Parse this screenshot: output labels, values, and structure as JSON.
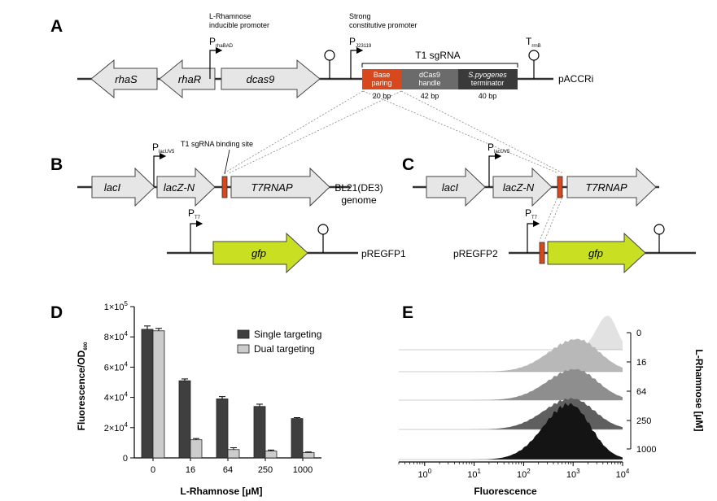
{
  "panels": {
    "a": "A",
    "b": "B",
    "c": "C",
    "d": "D",
    "e": "E"
  },
  "panel_a": {
    "promoter1": {
      "line1": "L-Rhamnose",
      "line2": "inducible promoter",
      "name": "P",
      "sub": "rhaBAD"
    },
    "promoter2": {
      "line1": "Strong",
      "line2": "constitutive promoter",
      "name": "P",
      "sub": "J23119"
    },
    "terminator": {
      "name": "T",
      "sub": "rrnB"
    },
    "genes": [
      "rhaS",
      "rhaR",
      "dcas9"
    ],
    "sgrna_title": "T1 sgRNA",
    "segments": [
      {
        "line1": "Base",
        "line2": "paring",
        "bp": "20 bp",
        "color": "#d9481c"
      },
      {
        "line1": "dCas9",
        "line2": "handle",
        "bp": "42 bp",
        "color": "#6b6b6b"
      },
      {
        "line1": "S.pyogenes",
        "line2": "terminator",
        "bp": "40 bp",
        "color": "#3a3a3a"
      }
    ],
    "plasmid": "pACCRi"
  },
  "panel_b": {
    "promoter": {
      "name": "P",
      "sub": "lacUV5"
    },
    "binding_site": "T1 sgRNA binding site",
    "genes": [
      "lacI",
      "lacZ-N",
      "T7RNAP"
    ],
    "genome_line1": "BL21(DE3)",
    "genome_line2": "genome",
    "promoter_t7": {
      "name": "P",
      "sub": "T7"
    },
    "gfp": "gfp",
    "plasmid": "pREGFP1"
  },
  "panel_c": {
    "promoter": {
      "name": "P",
      "sub": "lacUV5"
    },
    "genes": [
      "lacI",
      "lacZ-N",
      "T7RNAP"
    ],
    "promoter_t7": {
      "name": "P",
      "sub": "T7"
    },
    "gfp": "gfp",
    "plasmid": "pREGFP2"
  },
  "colors": {
    "gfp": "#c8e021",
    "gene": "#e6e6e6",
    "red": "#d9481c",
    "single": "#3f3f3f",
    "dual": "#cccccc"
  },
  "chart_data": [
    {
      "type": "bar",
      "categories": [
        "0",
        "16",
        "64",
        "250",
        "1000"
      ],
      "series": [
        {
          "name": "Single targeting",
          "values": [
            85000,
            51000,
            39000,
            34000,
            26000
          ],
          "errors": [
            2200,
            1200,
            1500,
            1500,
            600
          ]
        },
        {
          "name": "Dual targeting",
          "values": [
            84000,
            12000,
            5500,
            4500,
            3500
          ],
          "errors": [
            1600,
            800,
            1200,
            700,
            400
          ]
        }
      ],
      "ylim": [
        0,
        100000
      ],
      "yticks": [
        {
          "v": 0,
          "m": "0",
          "e": ""
        },
        {
          "v": 20000,
          "m": "2×10",
          "e": "4"
        },
        {
          "v": 40000,
          "m": "4×10",
          "e": "4"
        },
        {
          "v": 60000,
          "m": "6×10",
          "e": "4"
        },
        {
          "v": 80000,
          "m": "8×10",
          "e": "4"
        },
        {
          "v": 100000,
          "m": "1×10",
          "e": "5"
        }
      ],
      "ylabel": "Fluorescence/OD",
      "ylabel_sub": "600",
      "xlabel": "L-Rhamnose [µM]",
      "legend": "top-right"
    },
    {
      "type": "area",
      "xscale": "log",
      "xlim": [
        0.3,
        10000
      ],
      "xticks": [
        {
          "v": 1,
          "m": "10",
          "e": "0"
        },
        {
          "v": 10,
          "m": "10",
          "e": "1"
        },
        {
          "v": 100,
          "m": "10",
          "e": "2"
        },
        {
          "v": 1000,
          "m": "10",
          "e": "3"
        },
        {
          "v": 10000,
          "m": "10",
          "e": "4"
        }
      ],
      "xlabel": "Fluorescence",
      "ylabel": "L-Rhamnose [µM]",
      "series": [
        {
          "name": "0",
          "color": "#e2e2e2",
          "peak": 5000
        },
        {
          "name": "16",
          "color": "#b8b8b8",
          "peak": 1200
        },
        {
          "name": "64",
          "color": "#8e8e8e",
          "peak": 1100
        },
        {
          "name": "250",
          "color": "#5f5f5f",
          "peak": 950
        },
        {
          "name": "1000",
          "color": "#141414",
          "peak": 850
        }
      ]
    }
  ]
}
